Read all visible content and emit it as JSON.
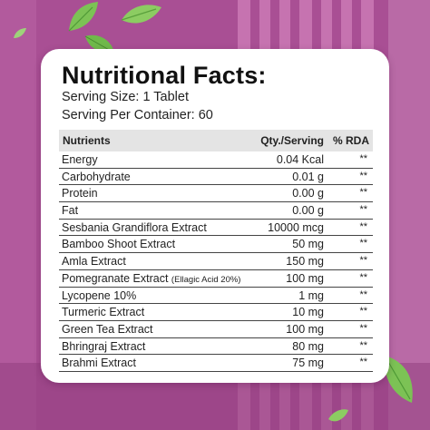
{
  "title": "Nutritional Facts:",
  "serving_size": "Serving Size: 1 Tablet",
  "serving_per_container": "Serving Per Container: 60",
  "columns": {
    "nutrients": "Nutrients",
    "qty": "Qty./Serving",
    "rda": "% RDA"
  },
  "rows": [
    {
      "name": "Energy",
      "qty": "0.04 Kcal",
      "rda": "**"
    },
    {
      "name": "Carbohydrate",
      "qty": "0.01 g",
      "rda": "**"
    },
    {
      "name": "Protein",
      "qty": "0.00 g",
      "rda": "**"
    },
    {
      "name": "Fat",
      "qty": "0.00 g",
      "rda": "**"
    },
    {
      "name": "Sesbania Grandiflora Extract",
      "qty": "10000 mcg",
      "rda": "**"
    },
    {
      "name": "Bamboo Shoot Extract",
      "qty": "50 mg",
      "rda": "**"
    },
    {
      "name": "Amla Extract",
      "qty": "150 mg",
      "rda": "**"
    },
    {
      "name": "Pomegranate Extract",
      "note": "(Ellagic Acid 20%)",
      "qty": "100 mg",
      "rda": "**"
    },
    {
      "name": "Lycopene 10%",
      "qty": "1 mg",
      "rda": "**"
    },
    {
      "name": "Turmeric Extract",
      "qty": "10 mg",
      "rda": "**"
    },
    {
      "name": "Green Tea Extract",
      "qty": "100 mg",
      "rda": "**"
    },
    {
      "name": "Bhringraj Extract",
      "qty": "80 mg",
      "rda": "**"
    },
    {
      "name": "Brahmi Extract",
      "qty": "75 mg",
      "rda": "**"
    }
  ],
  "colors": {
    "background": "#a94f94",
    "stripe_light": "#c46fae",
    "stripe_dark": "#8f3d7d",
    "leaf": "#6fbf4a"
  }
}
